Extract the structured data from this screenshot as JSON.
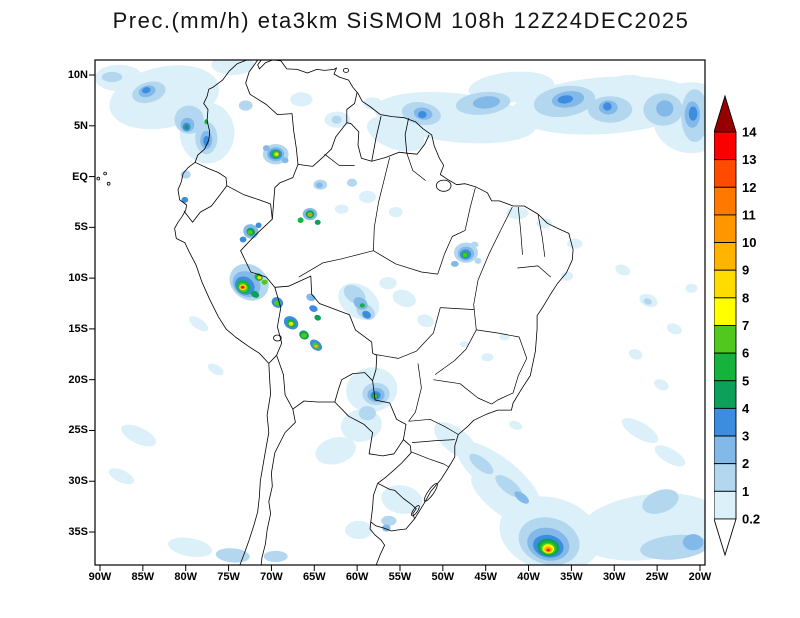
{
  "title": "Prec.(mm/h) eta3km SiSMOM 108h 12Z24DEC2025",
  "axes": {
    "y_labels": [
      "10N",
      "5N",
      "EQ",
      "5S",
      "10S",
      "15S",
      "20S",
      "25S",
      "30S",
      "35S"
    ],
    "x_labels": [
      "90W",
      "85W",
      "80W",
      "75W",
      "70W",
      "65W",
      "60W",
      "55W",
      "50W",
      "45W",
      "40W",
      "35W",
      "30W",
      "25W",
      "20W"
    ]
  },
  "colorbar": {
    "tick_labels": [
      "14",
      "13",
      "12",
      "11",
      "10",
      "9",
      "8",
      "7",
      "6",
      "5",
      "4",
      "3",
      "2",
      "1",
      "0.2"
    ],
    "above_color": "#960000",
    "below_color": "#ffffff",
    "box_colors_top_to_bottom": [
      "#fa0000",
      "#ff4b00",
      "#ff7800",
      "#ff9600",
      "#ffb400",
      "#ffdc00",
      "#ffff00",
      "#50c81e",
      "#14b43c",
      "#0ca05a",
      "#3c8ce0",
      "#82b9e8",
      "#b4d7f0",
      "#dcf0fa"
    ]
  },
  "palette": {
    "0.2": "#dcf0fa",
    "1": "#b4d7f0",
    "2": "#82b9e8",
    "3": "#3c8ce0",
    "4": "#0ca05a",
    "5": "#14b43c",
    "6": "#50c81e",
    "7": "#ffff00",
    "8": "#ffdc00",
    "9": "#ffb400",
    "10": "#ff9600",
    "11": "#ff7800",
    "12": "#ff4b00",
    "13": "#fa0000",
    "14": "#960000"
  },
  "chart_data": {
    "type": "heatmap",
    "variable": "Prec.",
    "units": "mm/h",
    "model": "eta3km SiSMOM",
    "forecast_hour": "108h",
    "init_time": "12Z24DEC2025",
    "lon_range": [
      -90,
      -20
    ],
    "lat_range": [
      -35,
      10
    ],
    "contour_levels": [
      0.2,
      1,
      2,
      3,
      4,
      5,
      6,
      7,
      8,
      9,
      10,
      11,
      12,
      13,
      14
    ],
    "features": [
      [
        -48.5,
        5.8,
        9.5,
        2.4,
        6,
        "0.2"
      ],
      [
        -31,
        7.0,
        11,
        2.8,
        -4,
        "0.2"
      ],
      [
        -21,
        5.8,
        4.5,
        3.5,
        0,
        "0.2"
      ],
      [
        -55.5,
        4.2,
        3.5,
        1.5,
        20,
        "0.2"
      ],
      [
        -42,
        8.8,
        5,
        1.5,
        -5,
        "0.2"
      ],
      [
        -28.5,
        9.2,
        2.2,
        0.8,
        -5,
        "0.2"
      ],
      [
        -52.5,
        6.2,
        2.3,
        1.1,
        10,
        "1"
      ],
      [
        -45.3,
        7.2,
        3.2,
        1.1,
        -6,
        "1"
      ],
      [
        -35.8,
        7.4,
        3.6,
        1.5,
        -8,
        "1"
      ],
      [
        -30.5,
        6.6,
        2.6,
        1.3,
        0,
        "1"
      ],
      [
        -24.3,
        6.6,
        2.3,
        1.6,
        0,
        "1"
      ],
      [
        -20.6,
        6.0,
        1.6,
        2.6,
        0,
        "1"
      ],
      [
        -52.3,
        6.2,
        1.1,
        0.6,
        10,
        "2"
      ],
      [
        -44.9,
        7.3,
        1.6,
        0.6,
        -6,
        "2"
      ],
      [
        -35.4,
        7.6,
        1.9,
        0.8,
        -8,
        "2"
      ],
      [
        -30.7,
        6.8,
        1.1,
        0.7,
        0,
        "2"
      ],
      [
        -24.1,
        6.7,
        1.0,
        0.8,
        0,
        "2"
      ],
      [
        -20.9,
        6.1,
        0.9,
        1.3,
        0,
        "2"
      ],
      [
        -35.7,
        7.6,
        0.9,
        0.4,
        -8,
        "3"
      ],
      [
        -52.4,
        6.1,
        0.5,
        0.35,
        0,
        "3"
      ],
      [
        -20.8,
        6.2,
        0.5,
        0.7,
        0,
        "3"
      ],
      [
        -30.8,
        6.9,
        0.5,
        0.4,
        0,
        "3"
      ],
      [
        -82.5,
        7.8,
        6.5,
        3.0,
        -12,
        "0.2"
      ],
      [
        -77.5,
        4.3,
        3.2,
        3.0,
        0,
        "0.2"
      ],
      [
        -87.8,
        9.7,
        2.8,
        1.3,
        0,
        "0.2"
      ],
      [
        -74.5,
        11.0,
        2.5,
        1.0,
        0,
        "0.2"
      ],
      [
        -84.3,
        8.3,
        2.0,
        1.0,
        -15,
        "1"
      ],
      [
        -79.6,
        5.6,
        1.7,
        1.4,
        0,
        "1"
      ],
      [
        -77.6,
        3.8,
        1.3,
        1.6,
        0,
        "1"
      ],
      [
        -88.6,
        9.8,
        1.2,
        0.5,
        0,
        "1"
      ],
      [
        -73.0,
        7.0,
        0.8,
        0.5,
        0,
        "1"
      ],
      [
        -84.5,
        8.4,
        1.0,
        0.55,
        -15,
        "2"
      ],
      [
        -79.8,
        5.1,
        0.8,
        0.7,
        0,
        "2"
      ],
      [
        -77.6,
        3.6,
        0.7,
        0.9,
        0,
        "2"
      ],
      [
        -84.6,
        8.5,
        0.5,
        0.3,
        -15,
        "3"
      ],
      [
        -79.9,
        4.9,
        0.45,
        0.4,
        0,
        "3"
      ],
      [
        -77.6,
        3.5,
        0.35,
        0.5,
        0,
        "3"
      ],
      [
        -79.9,
        4.85,
        0.25,
        0.22,
        0,
        "4"
      ],
      [
        -77.6,
        5.4,
        0.22,
        0.25,
        0,
        "5"
      ],
      [
        -66.5,
        7.6,
        1.3,
        0.7,
        0,
        "0.2"
      ],
      [
        -62.3,
        5.6,
        1.5,
        0.8,
        0,
        "0.2"
      ],
      [
        -58.2,
        7.2,
        1.1,
        0.6,
        0,
        "0.2"
      ],
      [
        -62.4,
        5.6,
        0.6,
        0.4,
        0,
        "1"
      ],
      [
        -69.5,
        2.2,
        1.5,
        1.0,
        0,
        "1"
      ],
      [
        -69.5,
        2.2,
        1.0,
        0.7,
        0,
        "2"
      ],
      [
        -70.6,
        2.8,
        0.4,
        0.3,
        0,
        "2"
      ],
      [
        -68.4,
        1.6,
        0.4,
        0.3,
        0,
        "2"
      ],
      [
        -69.5,
        2.2,
        0.75,
        0.5,
        0,
        "3"
      ],
      [
        -69.5,
        2.2,
        0.5,
        0.38,
        0,
        "5"
      ],
      [
        -69.45,
        2.2,
        0.35,
        0.27,
        0,
        "6"
      ],
      [
        -69.4,
        2.2,
        0.22,
        0.17,
        0,
        "8"
      ],
      [
        -58.8,
        -2.0,
        1.0,
        0.6,
        0,
        "0.2"
      ],
      [
        -61.8,
        -3.2,
        0.8,
        0.45,
        0,
        "0.2"
      ],
      [
        -55.5,
        -3.5,
        0.8,
        0.5,
        0,
        "0.2"
      ],
      [
        -64.3,
        -0.8,
        0.8,
        0.5,
        0,
        "1"
      ],
      [
        -60.6,
        -0.6,
        0.6,
        0.4,
        0,
        "1"
      ],
      [
        -80.0,
        0.2,
        0.6,
        0.4,
        0,
        "1"
      ],
      [
        -64.4,
        -0.85,
        0.4,
        0.28,
        0,
        "2"
      ],
      [
        -80.1,
        -2.3,
        0.4,
        0.3,
        0,
        "3"
      ],
      [
        -65.5,
        -3.7,
        0.85,
        0.6,
        0,
        "2"
      ],
      [
        -65.5,
        -3.72,
        0.5,
        0.38,
        0,
        "4"
      ],
      [
        -65.5,
        -3.75,
        0.32,
        0.25,
        0,
        "6"
      ],
      [
        -65.52,
        -3.76,
        0.2,
        0.15,
        0,
        "9"
      ],
      [
        -65.52,
        -3.77,
        0.11,
        0.08,
        0,
        "12"
      ],
      [
        -66.6,
        -4.3,
        0.35,
        0.28,
        0,
        "5"
      ],
      [
        -64.6,
        -4.5,
        0.35,
        0.26,
        0,
        "4"
      ],
      [
        -72.4,
        -5.4,
        0.9,
        0.7,
        30,
        "2"
      ],
      [
        -72.4,
        -5.45,
        0.5,
        0.38,
        30,
        "4"
      ],
      [
        -72.5,
        -5.5,
        0.3,
        0.24,
        0,
        "6"
      ],
      [
        -73.3,
        -6.2,
        0.4,
        0.3,
        0,
        "3"
      ],
      [
        -71.5,
        -4.8,
        0.35,
        0.28,
        0,
        "3"
      ],
      [
        -72.6,
        -10.4,
        2.4,
        1.7,
        35,
        "1"
      ],
      [
        -72.9,
        -10.6,
        1.7,
        1.2,
        35,
        "2"
      ],
      [
        -73.1,
        -10.75,
        1.2,
        0.85,
        35,
        "3"
      ],
      [
        -73.25,
        -10.85,
        0.85,
        0.6,
        35,
        "5"
      ],
      [
        -73.3,
        -10.9,
        0.6,
        0.42,
        35,
        "6"
      ],
      [
        -73.33,
        -10.9,
        0.42,
        0.3,
        0,
        "8"
      ],
      [
        -73.35,
        -10.9,
        0.3,
        0.2,
        0,
        "10"
      ],
      [
        -73.36,
        -10.9,
        0.18,
        0.12,
        0,
        "13"
      ],
      [
        -71.5,
        -9.9,
        0.5,
        0.35,
        30,
        "5"
      ],
      [
        -71.4,
        -9.95,
        0.22,
        0.16,
        0,
        "8"
      ],
      [
        -71.9,
        -11.6,
        0.5,
        0.32,
        30,
        "4"
      ],
      [
        -70.8,
        -10.4,
        0.35,
        0.25,
        0,
        "6"
      ],
      [
        -69.3,
        -12.4,
        0.7,
        0.5,
        30,
        "3"
      ],
      [
        -69.3,
        -12.45,
        0.38,
        0.27,
        0,
        "6"
      ],
      [
        -67.7,
        -14.4,
        0.9,
        0.6,
        35,
        "3"
      ],
      [
        -67.7,
        -14.45,
        0.55,
        0.38,
        35,
        "5"
      ],
      [
        -67.7,
        -14.5,
        0.28,
        0.2,
        0,
        "8"
      ],
      [
        -66.2,
        -15.6,
        0.6,
        0.42,
        35,
        "4"
      ],
      [
        -66.2,
        -15.65,
        0.35,
        0.24,
        0,
        "6"
      ],
      [
        -64.8,
        -16.6,
        0.8,
        0.45,
        40,
        "3"
      ],
      [
        -64.8,
        -16.65,
        0.45,
        0.26,
        40,
        "6"
      ],
      [
        -64.8,
        -16.7,
        0.2,
        0.13,
        0,
        "9"
      ],
      [
        -65.4,
        -11.9,
        0.55,
        0.35,
        20,
        "2"
      ],
      [
        -65.1,
        -13.0,
        0.5,
        0.32,
        20,
        "3"
      ],
      [
        -64.6,
        -13.9,
        0.4,
        0.28,
        20,
        "4"
      ],
      [
        -59.8,
        -12.3,
        2.6,
        1.6,
        35,
        "0.2"
      ],
      [
        -60.3,
        -11.6,
        1.4,
        0.8,
        35,
        "1"
      ],
      [
        -59.0,
        -13.3,
        1.2,
        0.7,
        35,
        "1"
      ],
      [
        -59.6,
        -12.5,
        0.9,
        0.55,
        35,
        "2"
      ],
      [
        -58.9,
        -13.6,
        0.55,
        0.35,
        35,
        "3"
      ],
      [
        -59.4,
        -12.7,
        0.3,
        0.22,
        0,
        "5"
      ],
      [
        -54.5,
        -12.0,
        1.4,
        0.8,
        20,
        "0.2"
      ],
      [
        -52.0,
        -14.2,
        1.0,
        0.6,
        20,
        "0.2"
      ],
      [
        -56.4,
        -10.5,
        1.0,
        0.6,
        0,
        "0.2"
      ],
      [
        -47.3,
        -7.5,
        1.4,
        1.0,
        0,
        "1"
      ],
      [
        -47.3,
        -7.6,
        0.95,
        0.7,
        0,
        "2"
      ],
      [
        -48.6,
        -8.6,
        0.45,
        0.3,
        0,
        "2"
      ],
      [
        -47.35,
        -7.65,
        0.65,
        0.48,
        0,
        "3"
      ],
      [
        -47.4,
        -7.7,
        0.42,
        0.3,
        0,
        "5"
      ],
      [
        -47.4,
        -7.72,
        0.26,
        0.19,
        0,
        "6"
      ],
      [
        -45.9,
        -8.3,
        0.4,
        0.3,
        0,
        "1"
      ],
      [
        -46.3,
        -6.7,
        0.45,
        0.3,
        0,
        "1"
      ],
      [
        -41.3,
        -3.6,
        1.3,
        0.6,
        0,
        "0.2"
      ],
      [
        -38.2,
        -4.6,
        0.9,
        0.5,
        0,
        "0.2"
      ],
      [
        -34.6,
        -6.6,
        0.9,
        0.5,
        0,
        "0.2"
      ],
      [
        -35.5,
        -9.8,
        0.7,
        0.45,
        0,
        "0.2"
      ],
      [
        -29,
        -9.2,
        0.9,
        0.5,
        20,
        "0.2"
      ],
      [
        -26,
        -12.2,
        1.1,
        0.6,
        20,
        "0.2"
      ],
      [
        -23,
        -15,
        0.9,
        0.5,
        20,
        "0.2"
      ],
      [
        -21,
        -11,
        0.7,
        0.45,
        0,
        "0.2"
      ],
      [
        -27.5,
        -17.5,
        0.8,
        0.5,
        20,
        "0.2"
      ],
      [
        -24.5,
        -20.5,
        0.9,
        0.5,
        25,
        "0.2"
      ],
      [
        -27,
        -25,
        2.4,
        0.8,
        30,
        "0.2"
      ],
      [
        -23.5,
        -27.5,
        2.0,
        0.7,
        30,
        "0.2"
      ],
      [
        -26.1,
        -12.3,
        0.5,
        0.3,
        20,
        "1"
      ],
      [
        -44.8,
        -17.8,
        0.7,
        0.4,
        0,
        "0.2"
      ],
      [
        -42.8,
        -15.8,
        0.6,
        0.35,
        0,
        "0.2"
      ],
      [
        -47.5,
        -16.5,
        0.5,
        0.3,
        0,
        "0.2"
      ],
      [
        -41.5,
        -24.5,
        0.8,
        0.4,
        20,
        "0.2"
      ],
      [
        -58.3,
        -21.0,
        3.0,
        2.2,
        -10,
        "0.2"
      ],
      [
        -59.5,
        -24.5,
        2.4,
        1.6,
        -10,
        "0.2"
      ],
      [
        -62.5,
        -27.0,
        2.4,
        1.3,
        -15,
        "0.2"
      ],
      [
        -57.8,
        -21.4,
        1.6,
        1.1,
        0,
        "1"
      ],
      [
        -58.8,
        -23.3,
        1.0,
        0.7,
        0,
        "1"
      ],
      [
        -57.8,
        -21.5,
        1.0,
        0.7,
        0,
        "2"
      ],
      [
        -57.85,
        -21.55,
        0.6,
        0.42,
        0,
        "3"
      ],
      [
        -57.9,
        -21.6,
        0.38,
        0.27,
        0,
        "4"
      ],
      [
        -57.9,
        -21.62,
        0.22,
        0.16,
        0,
        "6"
      ],
      [
        -43.5,
        -29.5,
        6.0,
        1.8,
        38,
        "0.2"
      ],
      [
        -48.5,
        -26.0,
        3.0,
        1.2,
        38,
        "0.2"
      ],
      [
        -45.5,
        -28.3,
        1.7,
        0.6,
        38,
        "1"
      ],
      [
        -42.3,
        -30.5,
        1.9,
        0.65,
        38,
        "1"
      ],
      [
        -40.8,
        -31.6,
        1.0,
        0.4,
        38,
        "2"
      ],
      [
        -54.8,
        -31.8,
        2.4,
        1.4,
        10,
        "0.2"
      ],
      [
        -59.8,
        -34.8,
        1.6,
        0.9,
        0,
        "0.2"
      ],
      [
        -56.3,
        -33.9,
        0.9,
        0.5,
        0,
        "1"
      ],
      [
        -56.6,
        -34.6,
        0.5,
        0.35,
        0,
        "2"
      ],
      [
        -37.5,
        -35.2,
        6.0,
        3.6,
        15,
        "0.2"
      ],
      [
        -43.0,
        -31.8,
        4.5,
        1.4,
        38,
        "0.2"
      ],
      [
        -37.6,
        -35.9,
        3.6,
        2.3,
        15,
        "1"
      ],
      [
        -37.7,
        -36.2,
        2.5,
        1.6,
        15,
        "2"
      ],
      [
        -37.7,
        -36.4,
        1.8,
        1.1,
        12,
        "3"
      ],
      [
        -37.7,
        -36.5,
        1.3,
        0.85,
        10,
        "4"
      ],
      [
        -37.7,
        -36.55,
        1.05,
        0.7,
        10,
        "5"
      ],
      [
        -37.7,
        -36.6,
        0.85,
        0.55,
        8,
        "6"
      ],
      [
        -37.7,
        -36.65,
        0.68,
        0.45,
        5,
        "7"
      ],
      [
        -37.7,
        -36.7,
        0.55,
        0.36,
        5,
        "8"
      ],
      [
        -37.7,
        -36.72,
        0.44,
        0.28,
        0,
        "9"
      ],
      [
        -37.7,
        -36.74,
        0.34,
        0.22,
        0,
        "10"
      ],
      [
        -37.7,
        -36.76,
        0.26,
        0.16,
        0,
        "11"
      ],
      [
        -37.7,
        -36.78,
        0.16,
        0.1,
        0,
        "13"
      ],
      [
        -26,
        -34.5,
        8.5,
        3.2,
        -8,
        "0.2"
      ],
      [
        -23,
        -36.5,
        4.0,
        1.2,
        -5,
        "1"
      ],
      [
        -24.6,
        -32.0,
        2.2,
        1.1,
        -20,
        "1"
      ],
      [
        -20.8,
        -36.0,
        1.2,
        0.8,
        0,
        "2"
      ],
      [
        -85.5,
        -25.5,
        2.2,
        0.8,
        25,
        "0.2"
      ],
      [
        -87.5,
        -29.5,
        1.6,
        0.6,
        25,
        "0.2"
      ],
      [
        -79.5,
        -36.5,
        2.6,
        0.9,
        10,
        "0.2"
      ],
      [
        -74.5,
        -37.3,
        2.0,
        0.7,
        5,
        "1"
      ],
      [
        -69.5,
        -37.4,
        1.4,
        0.55,
        0,
        "1"
      ],
      [
        -78.5,
        -14.5,
        1.3,
        0.5,
        35,
        "0.2"
      ],
      [
        -76.5,
        -19.0,
        1.0,
        0.45,
        30,
        "0.2"
      ]
    ]
  }
}
